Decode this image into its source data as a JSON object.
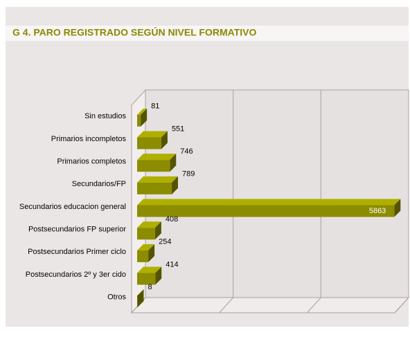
{
  "chart_data": {
    "type": "bar3d_horizontal",
    "title": "G 4. PARO REGISTRADO  SEGÚN NIVEL FORMATIVO",
    "categories": [
      "Sin estudios",
      "Primarios incompletos",
      "Primarios completos",
      "Secundarios/FP",
      "Secundarios educacion general",
      "Postsecundarios FP superior",
      "Postsecundarios  Primer ciclo",
      "Postsecundarios 2º y 3er cido",
      "Otros"
    ],
    "values": [
      81,
      551,
      746,
      789,
      5863,
      408,
      254,
      414,
      8
    ],
    "color": "#8c8c00",
    "xlim": [
      0,
      6000
    ],
    "xticks": [
      0,
      2000,
      4000,
      6000
    ],
    "grid": true
  }
}
